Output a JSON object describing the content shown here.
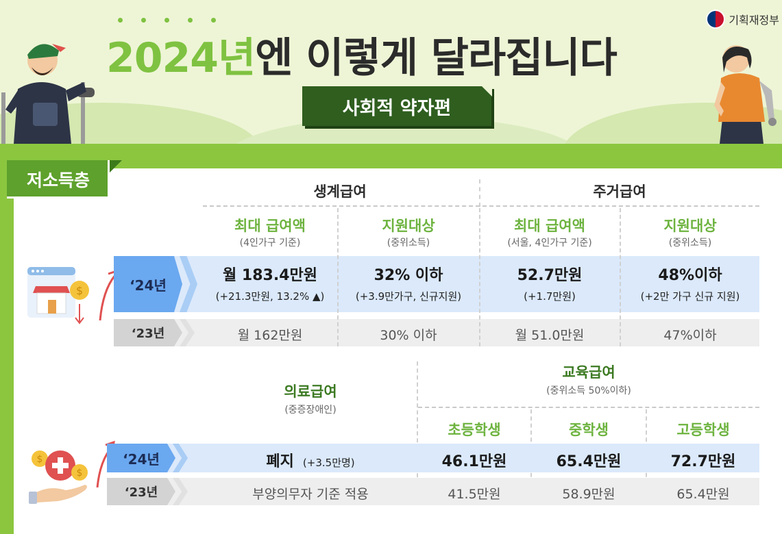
{
  "header": {
    "title_year": "2024년",
    "title_rest": "엔 이렇게 달라집니다",
    "subtitle": "사회적 약자편",
    "ministry": "기획재정부"
  },
  "section": {
    "label": "저소득층"
  },
  "top_table": {
    "groups": [
      {
        "title": "생계급여"
      },
      {
        "title": "주거급여"
      }
    ],
    "columns": [
      {
        "title": "최대 급여액",
        "sub": "(4인가구 기준)"
      },
      {
        "title": "지원대상",
        "sub": "(중위소득)"
      },
      {
        "title": "최대 급여액",
        "sub": "(서울, 4인가구 기준)"
      },
      {
        "title": "지원대상",
        "sub": "(중위소득)"
      }
    ],
    "row_2024": {
      "label": "‘24년",
      "cells": [
        {
          "main": "월 183.4만원",
          "sub": "(+21.3만원, 13.2% ▲)"
        },
        {
          "main": "32% 이하",
          "sub": "(+3.9만가구, 신규지원)"
        },
        {
          "main": "52.7만원",
          "sub": "(+1.7만원)"
        },
        {
          "main": "48%이하",
          "sub": "(+2만 가구 신규 지원)"
        }
      ]
    },
    "row_2023": {
      "label": "‘23년",
      "cells": [
        "월 162만원",
        "30% 이하",
        "월 51.0만원",
        "47%이하"
      ]
    }
  },
  "bottom_table": {
    "medical": {
      "title": "의료급여",
      "sub": "(중증장애인)"
    },
    "education": {
      "title": "교육급여",
      "sub": "(중위소득 50%이하)"
    },
    "edu_columns": [
      "초등학생",
      "중학생",
      "고등학생"
    ],
    "row_2024": {
      "label": "‘24년",
      "medical_main": "폐지",
      "medical_sub": "(+3.5만명)",
      "edu": [
        "46.1만원",
        "65.4만원",
        "72.7만원"
      ]
    },
    "row_2023": {
      "label": "‘23년",
      "medical": "부양의무자 기준 적용",
      "edu": [
        "41.5만원",
        "58.9만원",
        "65.4만원"
      ]
    }
  },
  "colors": {
    "accent_green": "#7fc241",
    "dark_green": "#2f5e1f",
    "row_blue": "#dbe9fb",
    "arrow_blue": "#6aa8f0"
  }
}
